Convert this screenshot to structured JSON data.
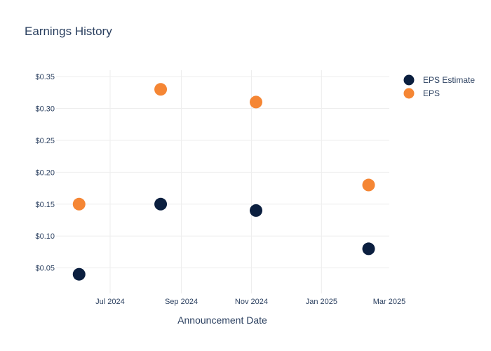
{
  "chart_data": {
    "type": "scatter",
    "title": "Earnings History",
    "xlabel": "Announcement Date",
    "ylabel": "",
    "x_type": "date",
    "xlim": [
      "2024-05-15",
      "2025-03-01"
    ],
    "ylim": [
      0.01,
      0.36
    ],
    "x_ticks": [
      {
        "value": "2024-07-01",
        "label": "Jul 2024"
      },
      {
        "value": "2024-09-01",
        "label": "Sep 2024"
      },
      {
        "value": "2024-11-01",
        "label": "Nov 2024"
      },
      {
        "value": "2025-01-01",
        "label": "Jan 2025"
      },
      {
        "value": "2025-03-01",
        "label": "Mar 2025"
      }
    ],
    "y_ticks": [
      {
        "value": 0.05,
        "label": "$0.05"
      },
      {
        "value": 0.1,
        "label": "$0.10"
      },
      {
        "value": 0.15,
        "label": "$0.15"
      },
      {
        "value": 0.2,
        "label": "$0.20"
      },
      {
        "value": 0.25,
        "label": "$0.25"
      },
      {
        "value": 0.3,
        "label": "$0.30"
      },
      {
        "value": 0.35,
        "label": "$0.35"
      }
    ],
    "grid": true,
    "legend_position": "top-right",
    "series": [
      {
        "name": "EPS Estimate",
        "color": "#0b1f3f",
        "points": [
          {
            "x": "2024-06-04",
            "y": 0.04
          },
          {
            "x": "2024-08-14",
            "y": 0.15
          },
          {
            "x": "2024-11-05",
            "y": 0.14
          },
          {
            "x": "2025-02-11",
            "y": 0.08
          }
        ]
      },
      {
        "name": "EPS",
        "color": "#f58634",
        "points": [
          {
            "x": "2024-06-04",
            "y": 0.15
          },
          {
            "x": "2024-08-14",
            "y": 0.33
          },
          {
            "x": "2024-11-05",
            "y": 0.31
          },
          {
            "x": "2025-02-11",
            "y": 0.18
          }
        ]
      }
    ]
  }
}
